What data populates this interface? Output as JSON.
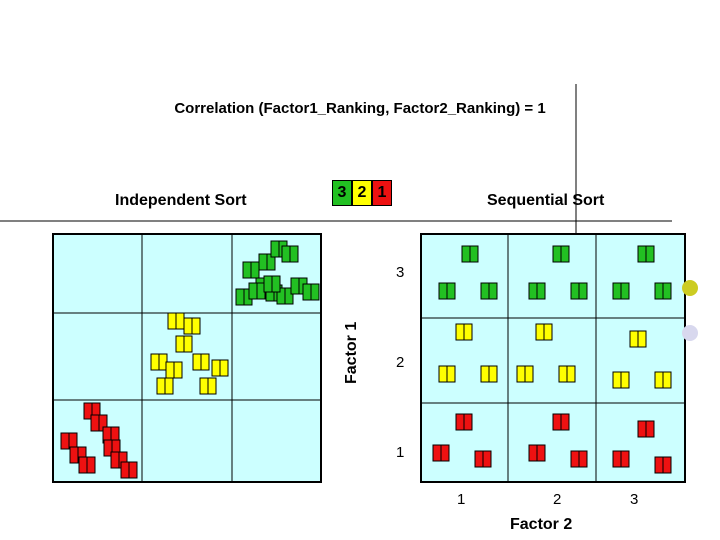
{
  "title": "Correlation (Factor1_Ranking, Factor2_Ranking) = 1",
  "labels": {
    "independent": "Independent Sort",
    "sequential": "Sequential Sort"
  },
  "legend": [
    {
      "label": "3",
      "color": "#22c022"
    },
    {
      "label": "2",
      "color": "#ffff00"
    },
    {
      "label": "1",
      "color": "#ee1111"
    }
  ],
  "axes": {
    "y_title": "Factor 1",
    "x_title": "Factor 2",
    "y_ticks": [
      "3",
      "2",
      "1"
    ],
    "x_ticks": [
      "1",
      "2",
      "3"
    ]
  },
  "colors": {
    "green": "#22c022",
    "yellow": "#ffff00",
    "red": "#ee1111",
    "grid_bg": "#ccffff",
    "bullet_gold": "#cccc22",
    "bullet_lavender": "#d8d8ee"
  }
}
